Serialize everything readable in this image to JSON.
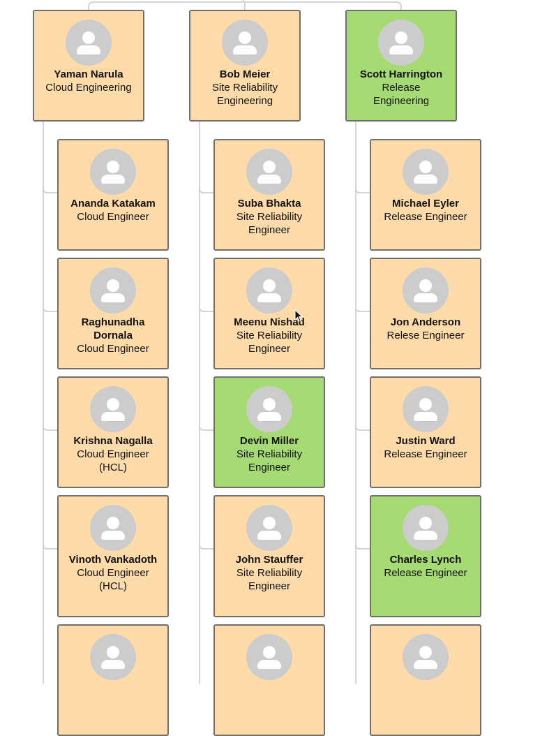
{
  "colors": {
    "card_default": "#fedba8",
    "card_highlight": "#a6db74",
    "border": "#6f6f6f",
    "connector": "#c8c8c8",
    "avatar": "#cccccc"
  },
  "managers": [
    {
      "name": "Yaman Narula",
      "role": "Cloud Engineering",
      "highlight": false,
      "reports": [
        {
          "name": "Ananda Katakam",
          "role": "Cloud Engineer",
          "highlight": false
        },
        {
          "name": "Raghunadha Dornala",
          "role": "Cloud Engineer",
          "highlight": false
        },
        {
          "name": "Krishna Nagalla",
          "role": "Cloud Engineer (HCL)",
          "highlight": false
        },
        {
          "name": "Vinoth Vankadoth",
          "role": "Cloud Engineer (HCL)",
          "highlight": false
        },
        {
          "name": "",
          "role": "",
          "highlight": false
        }
      ]
    },
    {
      "name": "Bob Meier",
      "role": "Site Reliability Engineering",
      "highlight": false,
      "reports": [
        {
          "name": "Suba Bhakta",
          "role": "Site Reliability Engineer",
          "highlight": false
        },
        {
          "name": "Meenu Nishad",
          "role": "Site Reliability Engineer",
          "highlight": false
        },
        {
          "name": "Devin Miller",
          "role": "Site Reliability Engineer",
          "highlight": true
        },
        {
          "name": "John Stauffer",
          "role": "Site Reliability Engineer",
          "highlight": false
        },
        {
          "name": "",
          "role": "",
          "highlight": false
        }
      ]
    },
    {
      "name": "Scott Harrington",
      "role": "Release Engineering",
      "highlight": true,
      "reports": [
        {
          "name": "Michael Eyler",
          "role": "Release Engineer",
          "highlight": false
        },
        {
          "name": "Jon Anderson",
          "role": "Relese Engineer",
          "highlight": false
        },
        {
          "name": "Justin Ward",
          "role": "Release Engineer",
          "highlight": false
        },
        {
          "name": "Charles Lynch",
          "role": "Release Engineer",
          "highlight": true
        },
        {
          "name": "",
          "role": "",
          "highlight": false
        }
      ]
    }
  ]
}
